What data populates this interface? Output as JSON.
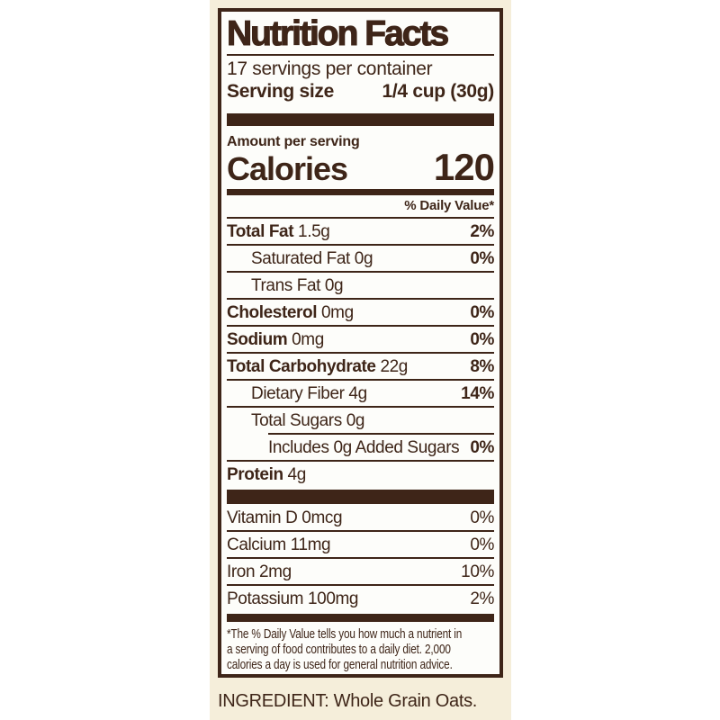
{
  "colors": {
    "brown": "#3E2518",
    "cream": "#F5EEDA",
    "label_background": "#FDFDFA",
    "page_background": "#FFFFFF"
  },
  "label": {
    "title": "Nutrition Facts",
    "servings_per_container": "17 servings per container",
    "serving_size_label": "Serving size",
    "serving_size_value": "1/4 cup (30g)",
    "amount_per_serving": "Amount per serving",
    "calories_label": "Calories",
    "calories_value": "120",
    "daily_value_header": "% Daily Value*",
    "nutrients": [
      {
        "name": "Total Fat",
        "amount": "1.5g",
        "dv": "2%",
        "bold": true,
        "indent": 0
      },
      {
        "name": "Saturated Fat",
        "amount": "0g",
        "dv": "0%",
        "bold": false,
        "indent": 1
      },
      {
        "name": "Trans Fat",
        "amount": "0g",
        "dv": "",
        "bold": false,
        "indent": 1
      },
      {
        "name": "Cholesterol",
        "amount": "0mg",
        "dv": "0%",
        "bold": true,
        "indent": 0
      },
      {
        "name": "Sodium",
        "amount": "0mg",
        "dv": "0%",
        "bold": true,
        "indent": 0
      },
      {
        "name": "Total Carbohydrate",
        "amount": "22g",
        "dv": "8%",
        "bold": true,
        "indent": 0
      },
      {
        "name": "Dietary Fiber",
        "amount": "4g",
        "dv": "14%",
        "bold": false,
        "indent": 1
      },
      {
        "name": "Total Sugars",
        "amount": "0g",
        "dv": "",
        "bold": false,
        "indent": 1
      },
      {
        "name": "Includes 0g Added Sugars",
        "amount": "",
        "dv": "0%",
        "bold": false,
        "indent": 2
      },
      {
        "name": "Protein",
        "amount": "4g",
        "dv": "",
        "bold": true,
        "indent": 0
      }
    ],
    "micronutrients": [
      {
        "name": "Vitamin D",
        "amount": "0mcg",
        "dv": "0%"
      },
      {
        "name": "Calcium",
        "amount": "11mg",
        "dv": "0%"
      },
      {
        "name": "Iron",
        "amount": "2mg",
        "dv": "10%"
      },
      {
        "name": "Potassium",
        "amount": "100mg",
        "dv": "2%"
      }
    ],
    "footnote_lines": [
      "*The % Daily Value tells you how much a nutrient in",
      "a serving of food contributes to a daily diet. 2,000",
      "calories a day is used for general nutrition advice."
    ]
  },
  "ingredient_line": "INGREDIENT: Whole Grain Oats."
}
